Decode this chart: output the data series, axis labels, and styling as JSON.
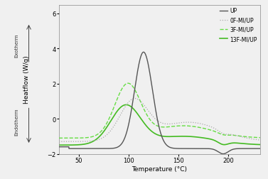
{
  "xlabel": "Temperature (°C)",
  "ylabel": "Heatflow (W/g)",
  "xlim": [
    30,
    232
  ],
  "ylim": [
    -2,
    6.5
  ],
  "yticks": [
    -2,
    0,
    2,
    4,
    6
  ],
  "xticks": [
    50,
    100,
    150,
    200
  ],
  "ylabel_exotherm": "Exotherm",
  "ylabel_endotherm": "Endotherm",
  "legend_labels": [
    "UP",
    "0F-MI/UP",
    "3F-MI/UP",
    "13F-MI/UP"
  ],
  "background_color": "#f0f0f0",
  "line_colors": {
    "UP": "#555555",
    "0F-MI/UP": "#aaaaaa",
    "3F-MI/UP": "#66dd44",
    "13F-MI/UP": "#44bb22"
  },
  "line_styles": {
    "UP": "-",
    "0F-MI/UP": ":",
    "3F-MI/UP": "--",
    "13F-MI/UP": "-"
  },
  "line_widths": {
    "UP": 1.0,
    "0F-MI/UP": 0.9,
    "3F-MI/UP": 1.0,
    "13F-MI/UP": 1.2
  }
}
